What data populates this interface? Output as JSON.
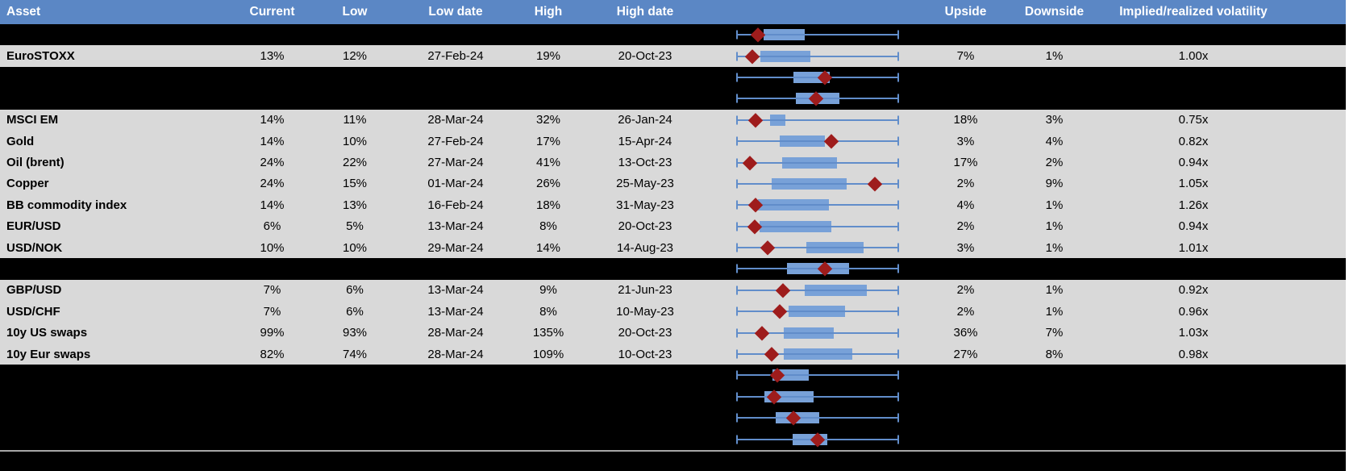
{
  "header": {
    "columns": [
      "Asset",
      "Current",
      "Low",
      "Low date",
      "High",
      "High date",
      "",
      "Upside",
      "Downside",
      "Implied/realized volatility"
    ]
  },
  "colors": {
    "header_bg": "#5b87c5",
    "header_text": "#ffffff",
    "row_light_bg": "#d9d9d9",
    "row_dark_bg": "#000000",
    "whisker_blue": "#618dca",
    "box_blue": "#78a1d8",
    "diamond_red": "#9e1c1c",
    "divider_gray": "#a6a6a6"
  },
  "rows": [
    {
      "kind": "plot",
      "asset": "",
      "current": "",
      "low": "",
      "low_date": "",
      "high": "",
      "high_date": "",
      "upside": "",
      "downside": "",
      "implied": "",
      "plot": {
        "box": [
          0.17,
          0.42
        ],
        "diamond": 0.135
      }
    },
    {
      "kind": "data",
      "asset": "EuroSTOXX",
      "current": "13%",
      "low": "12%",
      "low_date": "27-Feb-24",
      "high": "19%",
      "high_date": "20-Oct-23",
      "upside": "7%",
      "downside": "1%",
      "implied": "1.00x",
      "plot": {
        "box": [
          0.15,
          0.455
        ],
        "diamond": 0.1
      }
    },
    {
      "kind": "plot",
      "asset": "",
      "current": "",
      "low": "",
      "low_date": "",
      "high": "",
      "high_date": "",
      "upside": "",
      "downside": "",
      "implied": "",
      "plot": {
        "box": [
          0.35,
          0.575
        ],
        "diamond": 0.545
      }
    },
    {
      "kind": "plot",
      "asset": "",
      "current": "",
      "low": "",
      "low_date": "",
      "high": "",
      "high_date": "",
      "upside": "",
      "downside": "",
      "implied": "",
      "plot": {
        "box": [
          0.365,
          0.635
        ],
        "diamond": 0.49
      }
    },
    {
      "kind": "data",
      "asset": "MSCI EM",
      "current": "14%",
      "low": "11%",
      "low_date": "28-Mar-24",
      "high": "32%",
      "high_date": "26-Jan-24",
      "upside": "18%",
      "downside": "3%",
      "implied": "0.75x",
      "plot": {
        "box": [
          0.21,
          0.3
        ],
        "diamond": 0.12
      }
    },
    {
      "kind": "data",
      "asset": "Gold",
      "current": "14%",
      "low": "10%",
      "low_date": "27-Feb-24",
      "high": "17%",
      "high_date": "15-Apr-24",
      "upside": "3%",
      "downside": "4%",
      "implied": "0.82x",
      "plot": {
        "box": [
          0.265,
          0.545
        ],
        "diamond": 0.585
      }
    },
    {
      "kind": "data",
      "asset": "Oil (brent)",
      "current": "24%",
      "low": "22%",
      "low_date": "27-Mar-24",
      "high": "41%",
      "high_date": "13-Oct-23",
      "upside": "17%",
      "downside": "2%",
      "implied": "0.94x",
      "plot": {
        "box": [
          0.28,
          0.62
        ],
        "diamond": 0.085
      }
    },
    {
      "kind": "data",
      "asset": "Copper",
      "current": "24%",
      "low": "15%",
      "low_date": "01-Mar-24",
      "high": "26%",
      "high_date": "25-May-23",
      "upside": "2%",
      "downside": "9%",
      "implied": "1.05x",
      "plot": {
        "box": [
          0.22,
          0.68
        ],
        "diamond": 0.85
      }
    },
    {
      "kind": "data",
      "asset": "BB commodity index",
      "current": "14%",
      "low": "13%",
      "low_date": "16-Feb-24",
      "high": "18%",
      "high_date": "31-May-23",
      "upside": "4%",
      "downside": "1%",
      "implied": "1.26x",
      "plot": {
        "box": [
          0.135,
          0.57
        ],
        "diamond": 0.12
      }
    },
    {
      "kind": "data",
      "asset": "EUR/USD",
      "current": "6%",
      "low": "5%",
      "low_date": "13-Mar-24",
      "high": "8%",
      "high_date": "20-Oct-23",
      "upside": "2%",
      "downside": "1%",
      "implied": "0.94x",
      "plot": {
        "box": [
          0.145,
          0.585
        ],
        "diamond": 0.115
      }
    },
    {
      "kind": "data",
      "asset": "USD/NOK",
      "current": "10%",
      "low": "10%",
      "low_date": "29-Mar-24",
      "high": "14%",
      "high_date": "14-Aug-23",
      "upside": "3%",
      "downside": "1%",
      "implied": "1.01x",
      "plot": {
        "box": [
          0.43,
          0.78
        ],
        "diamond": 0.195
      }
    },
    {
      "kind": "plot",
      "asset": "",
      "current": "",
      "low": "",
      "low_date": "",
      "high": "",
      "high_date": "",
      "upside": "",
      "downside": "",
      "implied": "",
      "plot": {
        "box": [
          0.31,
          0.695
        ],
        "diamond": 0.545
      }
    },
    {
      "kind": "data",
      "asset": "GBP/USD",
      "current": "7%",
      "low": "6%",
      "low_date": "13-Mar-24",
      "high": "9%",
      "high_date": "21-Jun-23",
      "upside": "2%",
      "downside": "1%",
      "implied": "0.92x",
      "plot": {
        "box": [
          0.42,
          0.8
        ],
        "diamond": 0.285
      }
    },
    {
      "kind": "data",
      "asset": "USD/CHF",
      "current": "7%",
      "low": "6%",
      "low_date": "13-Mar-24",
      "high": "8%",
      "high_date": "10-May-23",
      "upside": "2%",
      "downside": "1%",
      "implied": "0.96x",
      "plot": {
        "box": [
          0.32,
          0.67
        ],
        "diamond": 0.265
      }
    },
    {
      "kind": "data",
      "asset": "10y US swaps",
      "current": "99%",
      "low": "93%",
      "low_date": "28-Mar-24",
      "high": "135%",
      "high_date": "20-Oct-23",
      "upside": "36%",
      "downside": "7%",
      "implied": "1.03x",
      "plot": {
        "box": [
          0.29,
          0.6
        ],
        "diamond": 0.16
      }
    },
    {
      "kind": "data",
      "asset": "10y Eur swaps",
      "current": "82%",
      "low": "74%",
      "low_date": "28-Mar-24",
      "high": "109%",
      "high_date": "10-Oct-23",
      "upside": "27%",
      "downside": "8%",
      "implied": "0.98x",
      "plot": {
        "box": [
          0.29,
          0.715
        ],
        "diamond": 0.22
      }
    },
    {
      "kind": "plot",
      "asset": "",
      "current": "",
      "low": "",
      "low_date": "",
      "high": "",
      "high_date": "",
      "upside": "",
      "downside": "",
      "implied": "",
      "plot": {
        "box": [
          0.225,
          0.445
        ],
        "diamond": 0.25
      }
    },
    {
      "kind": "plot",
      "asset": "",
      "current": "",
      "low": "",
      "low_date": "",
      "high": "",
      "high_date": "",
      "upside": "",
      "downside": "",
      "implied": "",
      "plot": {
        "box": [
          0.175,
          0.475
        ],
        "diamond": 0.235
      }
    },
    {
      "kind": "plot",
      "asset": "",
      "current": "",
      "low": "",
      "low_date": "",
      "high": "",
      "high_date": "",
      "upside": "",
      "downside": "",
      "implied": "",
      "plot": {
        "box": [
          0.245,
          0.51
        ],
        "diamond": 0.35
      }
    },
    {
      "kind": "plot",
      "asset": "",
      "current": "",
      "low": "",
      "low_date": "",
      "high": "",
      "high_date": "",
      "upside": "",
      "downside": "",
      "implied": "",
      "plot": {
        "box": [
          0.345,
          0.56
        ],
        "diamond": 0.5
      }
    }
  ]
}
